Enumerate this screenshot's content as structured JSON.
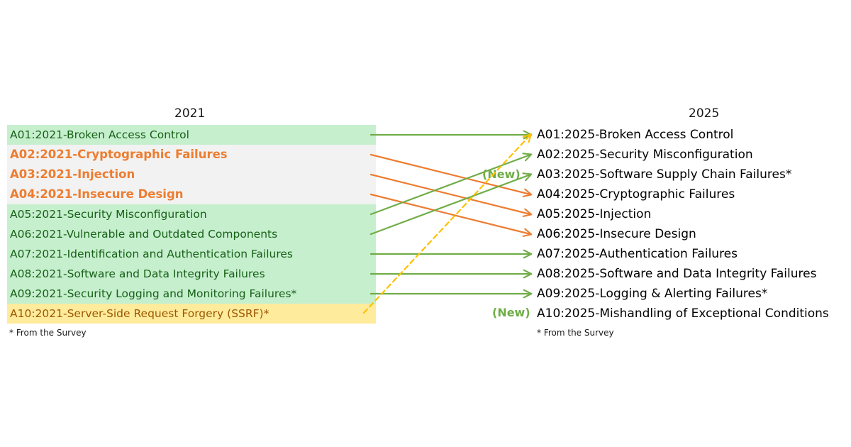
{
  "headers": {
    "left": "2021",
    "right": "2025"
  },
  "left_items": [
    {
      "label": "A01:2021-Broken Access Control",
      "style": "green"
    },
    {
      "label": "A02:2021-Cryptographic Failures",
      "style": "gray"
    },
    {
      "label": "A03:2021-Injection",
      "style": "gray"
    },
    {
      "label": "A04:2021-Insecure Design",
      "style": "gray"
    },
    {
      "label": "A05:2021-Security Misconfiguration",
      "style": "green"
    },
    {
      "label": "A06:2021-Vulnerable and Outdated Components",
      "style": "green"
    },
    {
      "label": "A07:2021-Identification and Authentication Failures",
      "style": "green"
    },
    {
      "label": "A08:2021-Software and Data Integrity Failures",
      "style": "green"
    },
    {
      "label": "A09:2021-Security Logging and Monitoring Failures*",
      "style": "green"
    },
    {
      "label": "A10:2021-Server-Side Request Forgery (SSRF)*",
      "style": "yellow"
    }
  ],
  "right_items": [
    {
      "label": "A01:2025-Broken Access Control"
    },
    {
      "label": "A02:2025-Security Misconfiguration"
    },
    {
      "label": "A03:2025-Software Supply Chain Failures*"
    },
    {
      "label": "A04:2025-Cryptographic Failures"
    },
    {
      "label": "A05:2025-Injection"
    },
    {
      "label": "A06:2025-Insecure Design"
    },
    {
      "label": "A07:2025-Authentication Failures"
    },
    {
      "label": "A08:2025-Software and Data Integrity Failures"
    },
    {
      "label": "A09:2025-Logging & Alerting Failures*"
    },
    {
      "label": "A10:2025-Mishandling of Exceptional Conditions"
    }
  ],
  "new_tags": {
    "a03": "(New)",
    "a10": "(New)"
  },
  "footnotes": {
    "left": "* From the Survey",
    "right": "* From the Survey"
  },
  "mappings": [
    {
      "from": 1,
      "to": 1,
      "color": "#70ad47",
      "dashed": false
    },
    {
      "from": 2,
      "to": 4,
      "color": "#ed7d31",
      "dashed": false
    },
    {
      "from": 3,
      "to": 5,
      "color": "#ed7d31",
      "dashed": false
    },
    {
      "from": 4,
      "to": 6,
      "color": "#ed7d31",
      "dashed": false
    },
    {
      "from": 5,
      "to": 2,
      "color": "#70ad47",
      "dashed": false
    },
    {
      "from": 6,
      "to": 3,
      "color": "#70ad47",
      "dashed": false
    },
    {
      "from": 7,
      "to": 7,
      "color": "#70ad47",
      "dashed": false
    },
    {
      "from": 8,
      "to": 8,
      "color": "#70ad47",
      "dashed": false
    },
    {
      "from": 9,
      "to": 9,
      "color": "#70ad47",
      "dashed": false
    },
    {
      "from": 10,
      "to": 1,
      "color": "#ffc000",
      "dashed": true
    }
  ]
}
